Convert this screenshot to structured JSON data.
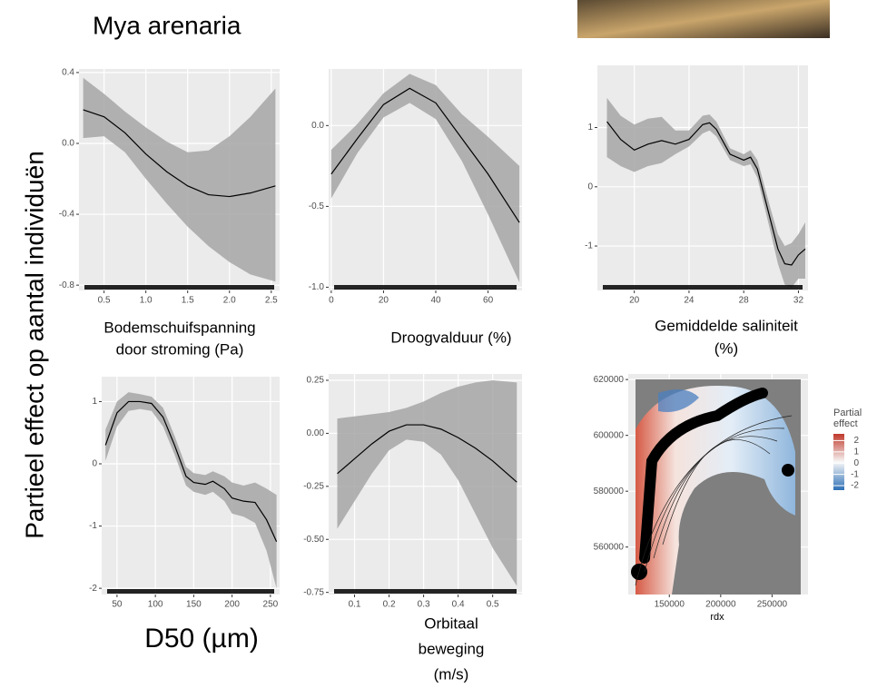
{
  "title": "Mya arenaria",
  "ylabel": "Partieel effect op aantal individuën",
  "chart_data": [
    {
      "type": "line",
      "xlabel": [
        "Bodemschuifspanning",
        "door stroming (Pa)"
      ],
      "x": [
        0.25,
        0.5,
        0.75,
        1.0,
        1.25,
        1.5,
        1.75,
        2.0,
        2.25,
        2.55
      ],
      "values": [
        0.19,
        0.15,
        0.06,
        -0.06,
        -0.16,
        -0.24,
        -0.29,
        -0.3,
        -0.28,
        -0.24
      ],
      "lower": [
        0.03,
        0.04,
        -0.05,
        -0.2,
        -0.34,
        -0.47,
        -0.58,
        -0.67,
        -0.74,
        -0.78
      ],
      "upper": [
        0.37,
        0.28,
        0.18,
        0.09,
        0.01,
        -0.05,
        -0.04,
        0.04,
        0.15,
        0.31
      ],
      "xlim": [
        0.2,
        2.6
      ],
      "xticks": [
        0.5,
        {
          "value": 1,
          "label": "1.0"
        },
        1.5,
        {
          "value": 2,
          "label": "2.0"
        },
        2.5
      ],
      "ylim": [
        -0.83,
        0.42
      ],
      "yticks": [
        0.4,
        {
          "value": 0,
          "label": "0.0"
        },
        -0.4,
        -0.8
      ]
    },
    {
      "type": "line",
      "xlabel": [
        "Droogvalduur (%)"
      ],
      "x": [
        0,
        10,
        20,
        30,
        40,
        50,
        60,
        72
      ],
      "values": [
        -0.3,
        -0.08,
        0.13,
        0.23,
        0.14,
        -0.08,
        -0.3,
        -0.6
      ],
      "lower": [
        -0.45,
        -0.17,
        0.05,
        0.14,
        0.04,
        -0.22,
        -0.55,
        -0.97
      ],
      "upper": [
        -0.15,
        0.01,
        0.2,
        0.32,
        0.25,
        0.07,
        -0.07,
        -0.25
      ],
      "xlim": [
        -1,
        73
      ],
      "xticks": [
        0,
        20,
        40,
        60
      ],
      "ylim": [
        -1.02,
        0.35
      ],
      "yticks": [
        {
          "value": 0,
          "label": "0.0"
        },
        -0.5,
        {
          "value": -1,
          "label": "-1.0"
        }
      ]
    },
    {
      "type": "line",
      "xlabel": [
        "Gemiddelde saliniteit",
        "(%)"
      ],
      "x": [
        18,
        19,
        20,
        21,
        22,
        23,
        24,
        25,
        25.5,
        26,
        27,
        28,
        28.5,
        29,
        30,
        30.5,
        31,
        31.5,
        32,
        32.5
      ],
      "values": [
        1.1,
        0.8,
        0.62,
        0.72,
        0.78,
        0.72,
        0.8,
        1.05,
        1.08,
        0.97,
        0.55,
        0.45,
        0.5,
        0.3,
        -0.6,
        -1.05,
        -1.3,
        -1.32,
        -1.15,
        -1.05
      ],
      "lower": [
        0.5,
        0.35,
        0.25,
        0.35,
        0.4,
        0.55,
        0.68,
        0.9,
        0.95,
        0.85,
        0.45,
        0.35,
        0.38,
        0.15,
        -0.8,
        -1.3,
        -1.65,
        -1.7,
        -1.55,
        -1.55
      ],
      "upper": [
        1.5,
        1.2,
        1.05,
        1.15,
        1.18,
        0.95,
        0.95,
        1.2,
        1.22,
        1.1,
        0.65,
        0.55,
        0.62,
        0.45,
        -0.4,
        -0.8,
        -1.0,
        -0.95,
        -0.8,
        -0.6
      ],
      "xlim": [
        17.3,
        32.7
      ],
      "xticks": [
        20,
        24,
        28,
        32
      ],
      "ylim": [
        -1.75,
        2.05
      ],
      "yticks": [
        1,
        0,
        -1
      ]
    },
    {
      "type": "line",
      "xlabel": [
        "D50 (µm)"
      ],
      "x": [
        35,
        50,
        65,
        80,
        95,
        110,
        125,
        140,
        150,
        165,
        175,
        190,
        200,
        215,
        230,
        245,
        258
      ],
      "values": [
        0.3,
        0.82,
        1.0,
        1.0,
        0.97,
        0.75,
        0.3,
        -0.2,
        -0.3,
        -0.33,
        -0.28,
        -0.4,
        -0.55,
        -0.6,
        -0.62,
        -0.9,
        -1.25
      ],
      "lower": [
        0.05,
        0.6,
        0.85,
        0.88,
        0.85,
        0.6,
        0.15,
        -0.35,
        -0.45,
        -0.5,
        -0.45,
        -0.6,
        -0.8,
        -0.85,
        -0.95,
        -1.4,
        -2.0
      ],
      "upper": [
        0.55,
        1.0,
        1.15,
        1.12,
        1.08,
        0.9,
        0.45,
        -0.05,
        -0.15,
        -0.18,
        -0.12,
        -0.2,
        -0.3,
        -0.35,
        -0.3,
        -0.4,
        -0.5
      ],
      "xlim": [
        30,
        262
      ],
      "xticks": [
        50,
        100,
        150,
        200,
        250
      ],
      "ylim": [
        -2.1,
        1.4
      ],
      "yticks": [
        1,
        0,
        -1,
        -2
      ]
    },
    {
      "type": "line",
      "xlabel": [
        "Orbitaal",
        "beweging",
        "(m/s)"
      ],
      "x": [
        0.05,
        0.1,
        0.15,
        0.2,
        0.25,
        0.3,
        0.35,
        0.4,
        0.45,
        0.5,
        0.57
      ],
      "values": [
        -0.19,
        -0.12,
        -0.05,
        0.01,
        0.04,
        0.04,
        0.02,
        -0.02,
        -0.07,
        -0.13,
        -0.23
      ],
      "lower": [
        -0.45,
        -0.32,
        -0.19,
        -0.08,
        -0.03,
        -0.04,
        -0.1,
        -0.22,
        -0.38,
        -0.54,
        -0.72
      ],
      "upper": [
        0.07,
        0.08,
        0.09,
        0.1,
        0.12,
        0.15,
        0.19,
        0.22,
        0.24,
        0.25,
        0.24
      ],
      "xlim": [
        0.025,
        0.585
      ],
      "xticks": [
        0.1,
        0.2,
        0.3,
        0.4,
        0.5
      ],
      "ylim": [
        -0.76,
        0.28
      ],
      "yticks": [
        0.25,
        {
          "value": 0,
          "label": "0.00"
        },
        -0.25,
        {
          "value": -0.5,
          "label": "-0.50"
        },
        -0.75
      ]
    },
    {
      "type": "map",
      "xlabel": [
        "rdx"
      ],
      "xlim": [
        110000,
        285000
      ],
      "xticks": [
        150000,
        200000,
        250000
      ],
      "ylim": [
        543000,
        622000
      ],
      "yticks": [
        560000,
        580000,
        600000,
        620000
      ],
      "legend_title": [
        "Partial",
        "effect"
      ],
      "legend_ticks": [
        2,
        1,
        0,
        -1,
        -2
      ],
      "legend_lim": [
        -2.4,
        2.6
      ]
    }
  ]
}
